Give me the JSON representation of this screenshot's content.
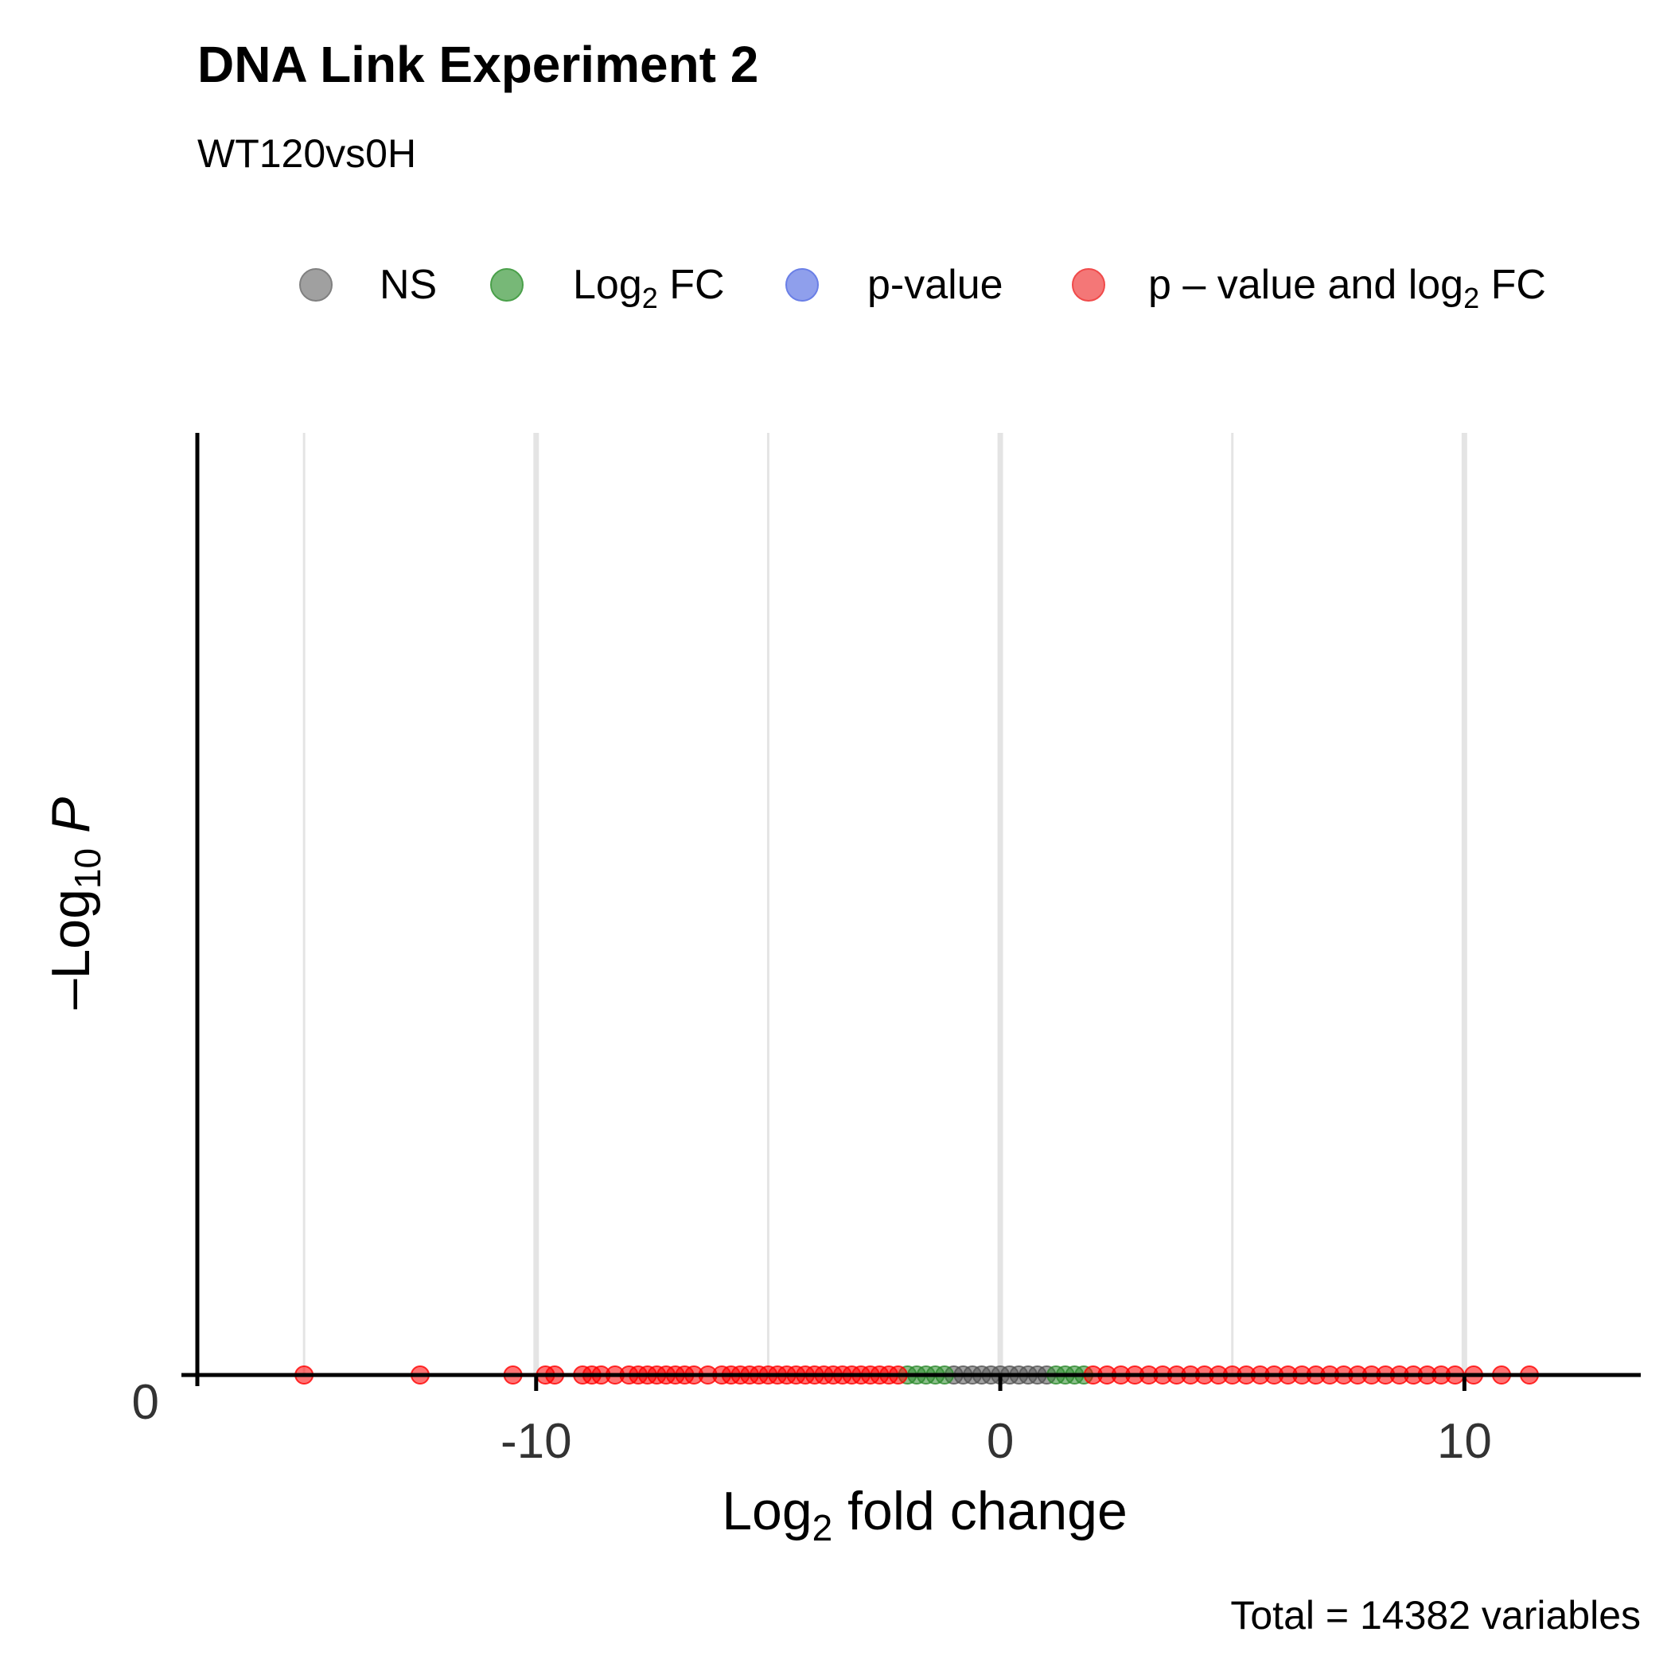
{
  "chart_data": {
    "type": "scatter",
    "title": "DNA Link Experiment 2",
    "subtitle": "WT120vs0H",
    "xlabel": {
      "main": "Log",
      "sub": "2",
      "rest": " fold change"
    },
    "ylabel": {
      "prefix": "–Log",
      "sub": "10",
      "italic": " P"
    },
    "caption": "Total = 14382 variables",
    "xlim": [
      -17.3,
      13.8
    ],
    "ylim": [
      0,
      0.6
    ],
    "x_ticks": [
      {
        "value": -10,
        "label": "-10"
      },
      {
        "value": 0,
        "label": "0"
      },
      {
        "value": 10,
        "label": "10"
      }
    ],
    "y_ticks": [
      {
        "value": 0,
        "label": "0"
      }
    ],
    "grid_x_major": [
      -10,
      0,
      10
    ],
    "grid_x_minor": [
      -15,
      -5,
      5
    ],
    "legend": {
      "position": "top",
      "entries": [
        {
          "key": "NS",
          "main": "NS",
          "sub": "",
          "rest": "",
          "color": "#808080"
        },
        {
          "key": "FC",
          "main": "Log",
          "sub": "2",
          "rest": " FC",
          "color": "#4aa04a"
        },
        {
          "key": "P",
          "main": "p-value",
          "sub": "",
          "rest": "",
          "color": "#6a7fe6"
        },
        {
          "key": "FC_P",
          "main": "p – value and log",
          "sub": "2",
          "rest": " FC",
          "color": "#f04a4a"
        }
      ]
    },
    "series": [
      {
        "name": "NS",
        "color": "#555555",
        "x": [
          -1.0,
          -0.8,
          -0.6,
          -0.4,
          -0.2,
          0.0,
          0.2,
          0.4,
          0.6,
          0.8,
          1.0
        ],
        "y": [
          0,
          0,
          0,
          0,
          0,
          0,
          0,
          0,
          0,
          0,
          0
        ]
      },
      {
        "name": "Log2 FC",
        "color": "#2e8b2e",
        "x": [
          -2.0,
          -1.8,
          -1.6,
          -1.4,
          -1.2,
          1.2,
          1.4,
          1.6,
          1.8
        ],
        "y": [
          0,
          0,
          0,
          0,
          0,
          0,
          0,
          0,
          0
        ]
      },
      {
        "name": "p-value and log2 FC",
        "color": "#ff0000",
        "x": [
          -15.0,
          -12.5,
          -10.5,
          -9.8,
          -9.6,
          -9.0,
          -8.8,
          -8.6,
          -8.3,
          -8.0,
          -7.8,
          -7.6,
          -7.4,
          -7.2,
          -7.0,
          -6.8,
          -6.6,
          -6.3,
          -6.0,
          -5.8,
          -5.6,
          -5.4,
          -5.2,
          -5.0,
          -4.8,
          -4.6,
          -4.4,
          -4.2,
          -4.0,
          -3.8,
          -3.6,
          -3.4,
          -3.2,
          -3.0,
          -2.8,
          -2.6,
          -2.4,
          -2.2,
          2.0,
          2.3,
          2.6,
          2.9,
          3.2,
          3.5,
          3.8,
          4.1,
          4.4,
          4.7,
          5.0,
          5.3,
          5.6,
          5.9,
          6.2,
          6.5,
          6.8,
          7.1,
          7.4,
          7.7,
          8.0,
          8.3,
          8.6,
          8.9,
          9.2,
          9.5,
          9.8,
          10.2,
          10.8,
          11.4
        ],
        "y": [
          0,
          0,
          0,
          0,
          0,
          0,
          0,
          0,
          0,
          0,
          0,
          0,
          0,
          0,
          0,
          0,
          0,
          0,
          0,
          0,
          0,
          0,
          0,
          0,
          0,
          0,
          0,
          0,
          0,
          0,
          0,
          0,
          0,
          0,
          0,
          0,
          0,
          0,
          0,
          0,
          0,
          0,
          0,
          0,
          0,
          0,
          0,
          0,
          0,
          0,
          0,
          0,
          0,
          0,
          0,
          0,
          0,
          0,
          0,
          0,
          0,
          0,
          0,
          0,
          0,
          0,
          0,
          0
        ]
      }
    ]
  }
}
